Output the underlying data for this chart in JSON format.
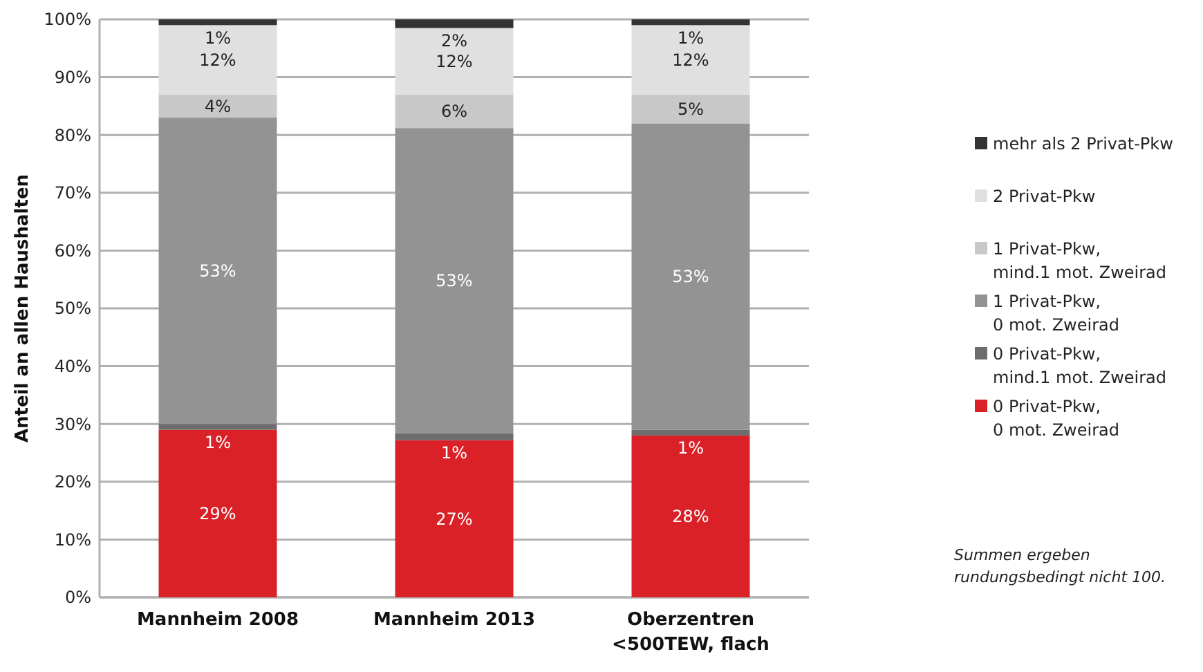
{
  "chart_data": {
    "type": "bar",
    "stacked": true,
    "ylabel": "Anteil an allen Haushalten",
    "categories": [
      "Mannheim 2008",
      "Mannheim 2013",
      "Oberzentren\n<500TEW, flach"
    ],
    "series": [
      {
        "name": "0 Privat-Pkw,\n0 mot. Zweirad",
        "color": "#da2128",
        "values": [
          29,
          27.2,
          28
        ],
        "value_labels": [
          "29%",
          "27%",
          "28%"
        ]
      },
      {
        "name": "0 Privat-Pkw,\nmind.1 mot. Zweirad",
        "color": "#6d6d6d",
        "values": [
          1,
          1.2,
          1
        ],
        "value_labels": [
          "1%",
          "1%",
          "1%"
        ]
      },
      {
        "name": "1 Privat-Pkw,\n0 mot. Zweirad",
        "color": "#939393",
        "values": [
          53,
          52.8,
          53
        ],
        "value_labels": [
          "53%",
          "53%",
          "53%"
        ]
      },
      {
        "name": "1 Privat-Pkw,\nmind.1 mot. Zweirad",
        "color": "#c8c8c8",
        "values": [
          4,
          5.8,
          5
        ],
        "value_labels": [
          "4%",
          "6%",
          "5%"
        ]
      },
      {
        "name": "2 Privat-Pkw",
        "color": "#e0e0e0",
        "values": [
          12,
          11.5,
          12
        ],
        "value_labels": [
          "12%",
          "12%",
          "12%"
        ]
      },
      {
        "name": "mehr als 2 Privat-Pkw",
        "color": "#333333",
        "values": [
          1,
          1.5,
          1
        ],
        "value_labels": [
          "1%",
          "2%",
          "1%"
        ]
      }
    ],
    "ylim": [
      0,
      100
    ],
    "yticks": [
      {
        "value": 0,
        "label": "0%"
      },
      {
        "value": 10,
        "label": "10%"
      },
      {
        "value": 20,
        "label": "20%"
      },
      {
        "value": 30,
        "label": "30%"
      },
      {
        "value": 40,
        "label": "40%"
      },
      {
        "value": 50,
        "label": "50%"
      },
      {
        "value": 60,
        "label": "60%"
      },
      {
        "value": 70,
        "label": "70%"
      },
      {
        "value": 80,
        "label": "80%"
      },
      {
        "value": 90,
        "label": "90%"
      },
      {
        "value": 100,
        "label": "100%"
      }
    ],
    "grid": "y",
    "legend": "right",
    "annotations": [
      "Summen ergeben\nrundungsbedingt nicht 100."
    ]
  }
}
